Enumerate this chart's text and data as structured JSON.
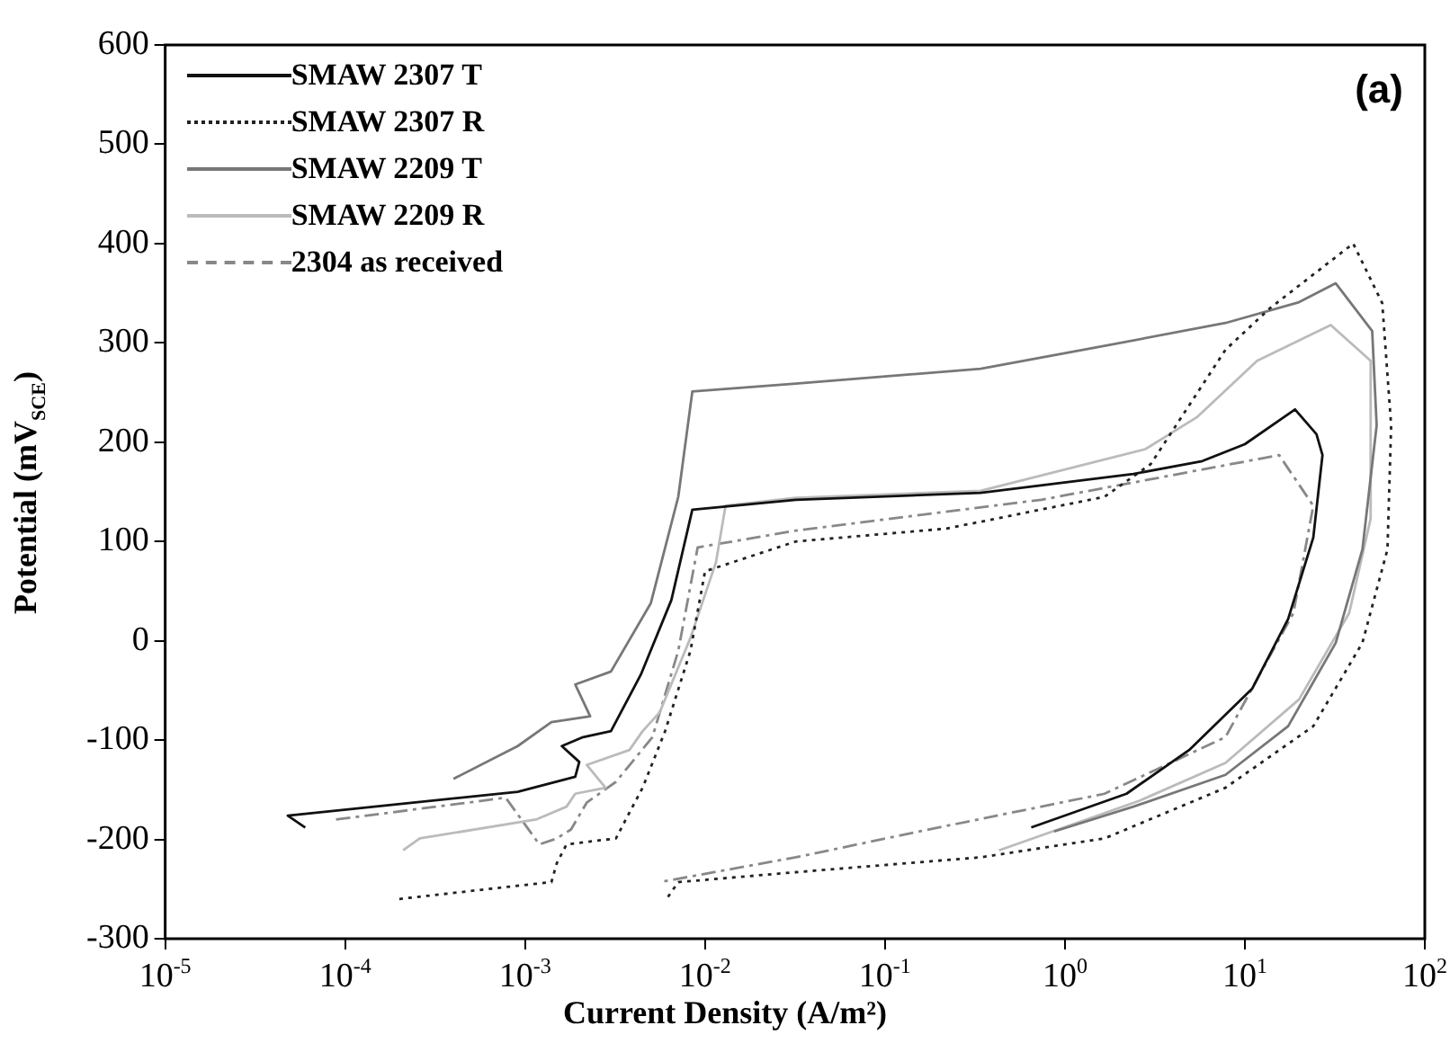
{
  "chart_data": {
    "type": "line",
    "xlabel": "Current Density (A/m²)",
    "ylabel": "Potential (mV$_{SCE}$)",
    "annotations": [
      "(a)"
    ],
    "log": "x",
    "legend": "top left",
    "xlim": [
      1e-05,
      100
    ],
    "xticks": [
      {
        "value": 1e-05,
        "label": "10$^{-5}$"
      },
      {
        "value": 0.0001,
        "label": "10$^{-4}$"
      },
      {
        "value": 0.001,
        "label": "10$^{-3}$"
      },
      {
        "value": 0.01,
        "label": "10$^{-2}$"
      },
      {
        "value": 0.1,
        "label": "10$^{-1}$"
      },
      {
        "value": 1,
        "label": "10$^{0}$"
      },
      {
        "value": 10,
        "label": "10$^{1}$"
      },
      {
        "value": 100,
        "label": "10$^{2}$"
      }
    ],
    "ylim": [
      -300,
      600
    ],
    "yticks": [
      -300,
      -200,
      -100,
      0,
      100,
      200,
      300,
      400,
      500,
      600
    ],
    "series": [
      {
        "name": "SMAW 2307 T",
        "color": "#111111",
        "line_style": "solid",
        "x": [
          6e-05,
          4.8e-05,
          0.00091,
          0.0019,
          0.002,
          0.0016,
          0.0021,
          0.003,
          0.0044,
          0.0065,
          0.0085,
          0.032,
          0.34,
          2.4,
          5.8,
          10,
          19,
          25,
          27,
          24,
          17.4,
          11,
          4.9,
          2.2,
          0.65
        ],
        "values": [
          -188,
          -176,
          -152,
          -137,
          -122,
          -106,
          -97,
          -91,
          -34,
          41,
          132,
          142,
          149,
          168,
          181,
          198,
          233,
          208,
          187,
          104,
          22,
          -48,
          -110,
          -154,
          -188
        ]
      },
      {
        "name": "SMAW 2307 R",
        "color": "#222222",
        "line_style": "dotted",
        "x": [
          0.0002,
          0.00078,
          0.0014,
          0.0015,
          0.0017,
          0.0032,
          0.0038,
          0.0045,
          0.006,
          0.0083,
          0.01,
          0.032,
          0.22,
          1.66,
          3.0,
          7.8,
          13.8,
          40,
          58,
          65,
          62,
          45,
          24,
          7.8,
          1.66,
          0.34,
          0.032,
          0.0071,
          0.006
        ],
        "values": [
          -260,
          -248,
          -243,
          -224,
          -205,
          -199,
          -173,
          -148,
          -91,
          -10,
          70,
          100,
          113,
          145,
          178,
          293,
          335,
          400,
          340,
          217,
          92,
          -2,
          -86,
          -148,
          -199,
          -218,
          -233,
          -243,
          -262
        ]
      },
      {
        "name": "SMAW 2209 T",
        "color": "#777777",
        "line_style": "solid",
        "x": [
          0.0004,
          0.00091,
          0.0014,
          0.0023,
          0.0019,
          0.003,
          0.005,
          0.0071,
          0.0085,
          0.032,
          0.34,
          1.66,
          7.8,
          20,
          32,
          51,
          54,
          45,
          32,
          17.4,
          7.8,
          2.4,
          0.87
        ],
        "values": [
          -139,
          -106,
          -82,
          -76,
          -44,
          -31,
          38,
          145,
          251,
          259,
          274,
          297,
          320,
          341,
          360,
          312,
          217,
          92,
          -2,
          -86,
          -135,
          -167,
          -192
        ]
      },
      {
        "name": "SMAW 2209 R",
        "color": "#bbbbbb",
        "line_style": "solid",
        "x": [
          0.00021,
          0.00026,
          0.00115,
          0.0017,
          0.0019,
          0.0028,
          0.0022,
          0.0038,
          0.0045,
          0.0056,
          0.0083,
          0.0115,
          0.013,
          0.032,
          0.34,
          2.8,
          5.4,
          11.7,
          30,
          50,
          50,
          38,
          20,
          7.8,
          2.6,
          0.43
        ],
        "values": [
          -211,
          -199,
          -180,
          -167,
          -154,
          -148,
          -125,
          -110,
          -91,
          -72,
          3,
          79,
          136,
          144,
          151,
          193,
          225,
          282,
          318,
          282,
          123,
          28,
          -59,
          -123,
          -161,
          -211
        ]
      },
      {
        "name": "2304 as received",
        "color": "#888888",
        "line_style": "dashed",
        "x": [
          8.9e-05,
          0.00078,
          0.0012,
          0.0015,
          0.0018,
          0.0022,
          0.0032,
          0.0051,
          0.0071,
          0.0091,
          0.032,
          0.74,
          15.5,
          24,
          18.6,
          7.8,
          1.66,
          0.155,
          0.032,
          0.0056
        ],
        "values": [
          -180,
          -158,
          -205,
          -199,
          -190,
          -163,
          -142,
          -97,
          -10,
          94,
          111,
          142,
          187,
          136,
          28,
          -97,
          -154,
          -192,
          -218,
          -243
        ]
      }
    ]
  }
}
